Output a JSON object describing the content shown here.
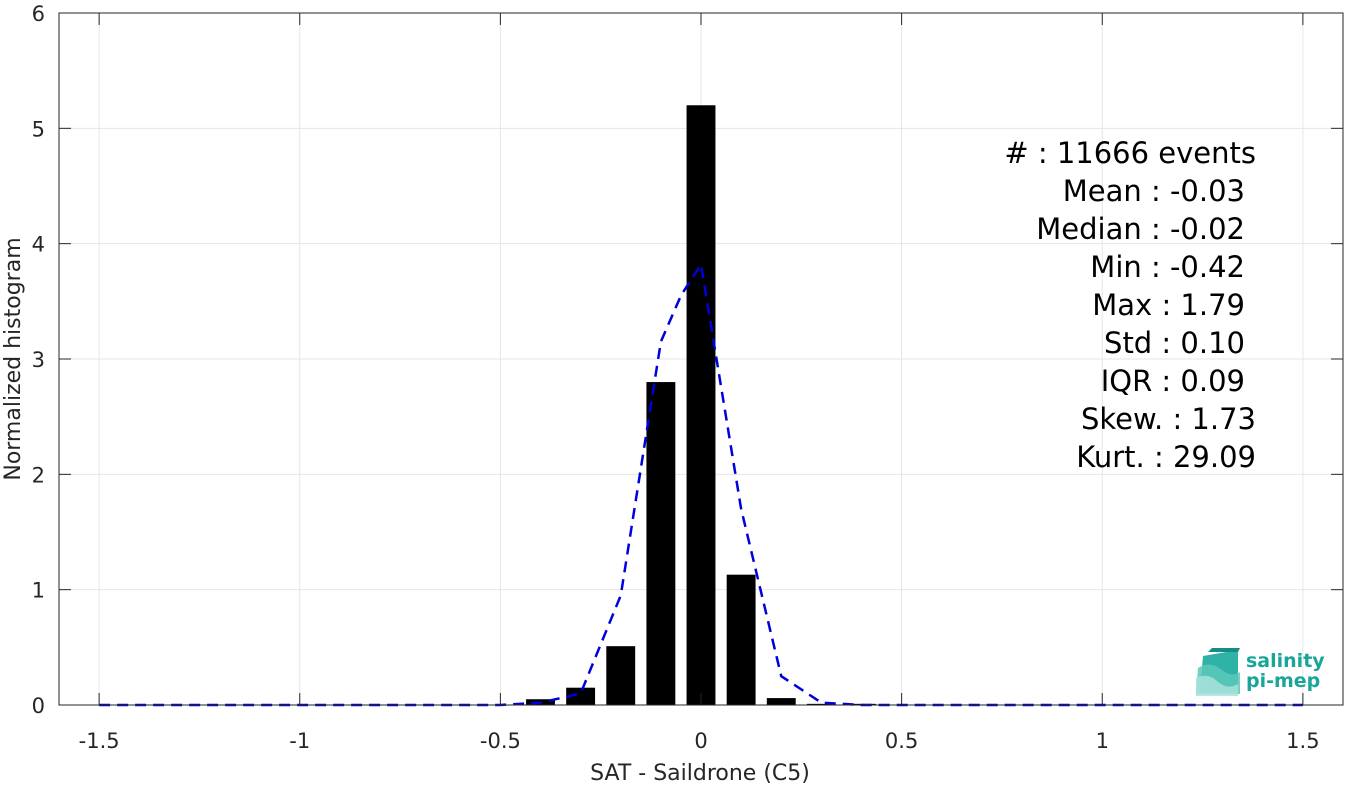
{
  "chart_data": {
    "type": "bar",
    "xlabel": "SAT - Saildrone (C5)",
    "ylabel": "Normalized histogram",
    "xlim": [
      -1.6,
      1.6
    ],
    "ylim": [
      0,
      6
    ],
    "grid": true,
    "xticks": [
      -1.5,
      -1,
      -0.5,
      0,
      0.5,
      1,
      1.5
    ],
    "xtick_labels": [
      "-1.5",
      "-1",
      "-0.5",
      "0",
      "0.5",
      "1",
      "1.5"
    ],
    "yticks": [
      0,
      1,
      2,
      3,
      4,
      5,
      6
    ],
    "ytick_labels": [
      "0",
      "1",
      "2",
      "3",
      "4",
      "5",
      "6"
    ],
    "bin_width": 0.1,
    "bar_color": "#000000",
    "bars": [
      {
        "x": -0.4,
        "y": 0.05
      },
      {
        "x": -0.3,
        "y": 0.15
      },
      {
        "x": -0.2,
        "y": 0.51
      },
      {
        "x": -0.1,
        "y": 2.8
      },
      {
        "x": 0.0,
        "y": 5.2
      },
      {
        "x": 0.1,
        "y": 1.13
      },
      {
        "x": 0.2,
        "y": 0.06
      },
      {
        "x": 0.3,
        "y": 0.01
      },
      {
        "x": 0.4,
        "y": 0.01
      }
    ],
    "fit_line": {
      "style": "dashed",
      "color": "#0000dd",
      "x": [
        -1.5,
        -1.4,
        -1.3,
        -1.2,
        -1.1,
        -1.0,
        -0.9,
        -0.8,
        -0.7,
        -0.6,
        -0.5,
        -0.4,
        -0.3,
        -0.2,
        -0.1,
        -0.05,
        0.0,
        0.1,
        0.2,
        0.3,
        0.4,
        0.5,
        0.6,
        0.7,
        0.8,
        0.9,
        1.0,
        1.1,
        1.2,
        1.3,
        1.4,
        1.5
      ],
      "y": [
        0,
        0,
        0,
        0,
        0,
        0,
        0,
        0,
        0,
        0,
        0,
        0.02,
        0.1,
        0.95,
        3.15,
        3.55,
        3.82,
        1.7,
        0.25,
        0.02,
        0,
        0,
        0,
        0,
        0,
        0,
        0,
        0,
        0,
        0,
        0,
        0
      ]
    },
    "annotation": {
      "lines": [
        "#  : 11666 events",
        "Mean : -0.03",
        "Median : -0.02",
        "Min : -0.42",
        "Max : 1.79",
        "Std : 0.10",
        "IQR : 0.09",
        "Skew. : 1.73",
        "Kurt. : 29.09"
      ]
    }
  },
  "logo": {
    "line1": "salinity",
    "line2": "pi-mep",
    "color": "#1aa59a"
  }
}
